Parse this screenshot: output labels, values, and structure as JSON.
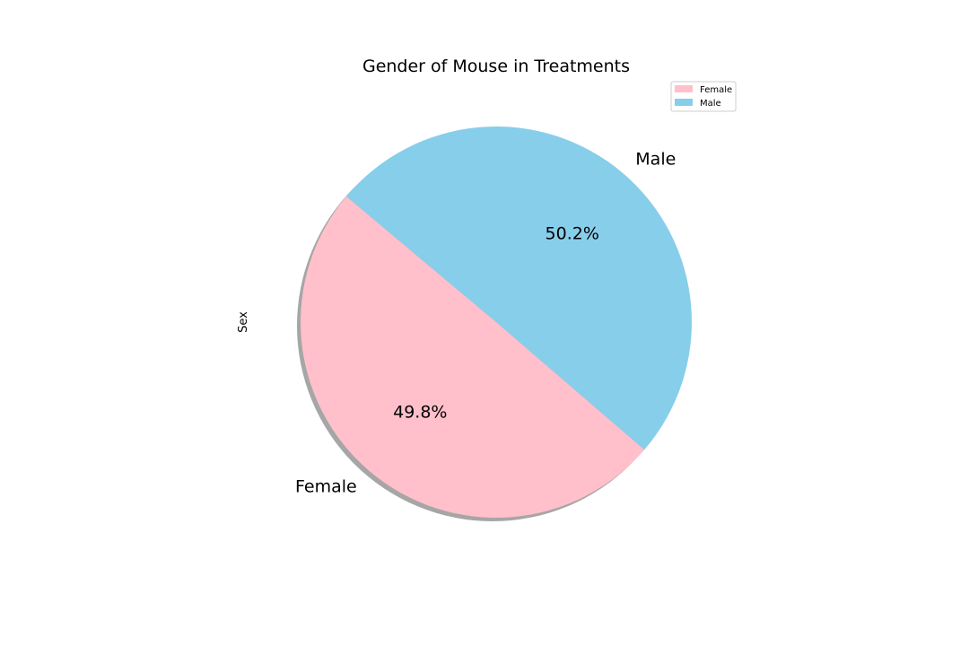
{
  "chart_data": {
    "type": "pie",
    "title": "Gender of Mouse in Treatments",
    "ylabel": "Sex",
    "categories": [
      "Female",
      "Male"
    ],
    "values": [
      49.8,
      50.2
    ],
    "percent_labels": [
      "49.8%",
      "50.2%"
    ],
    "colors": [
      "#ffc0cb",
      "#87ceeb"
    ],
    "shadow": true,
    "start_angle_deg": 140,
    "legend": {
      "placement": "upper right",
      "entries": [
        "Female",
        "Male"
      ]
    }
  }
}
